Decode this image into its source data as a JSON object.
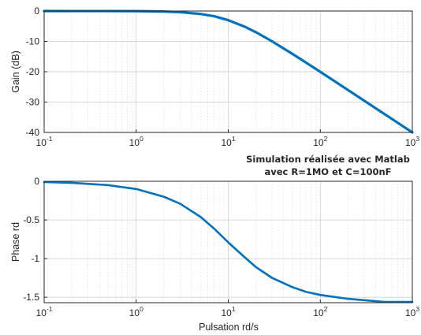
{
  "chart_data": [
    {
      "type": "line",
      "xscale": "log",
      "xlim": [
        0.1,
        1000
      ],
      "ylim": [
        -40,
        0
      ],
      "xticks": [
        "10^-1",
        "10^0",
        "10^1",
        "10^2",
        "10^3"
      ],
      "yticks": [
        0,
        -10,
        -20,
        -30,
        -40
      ],
      "xlabel": "",
      "ylabel": "Gain (dB)",
      "grid": true,
      "line_color": "#0072bd",
      "series": [
        {
          "x": [
            0.1,
            0.2,
            0.5,
            1,
            2,
            3,
            5,
            7,
            10,
            15,
            20,
            30,
            50,
            70,
            100,
            200,
            500,
            1000
          ],
          "y": [
            0,
            -0.02,
            -0.01,
            -0.04,
            -0.17,
            -0.37,
            -0.97,
            -1.7,
            -3.01,
            -5.12,
            -6.99,
            -10.0,
            -14.15,
            -16.99,
            -20.04,
            -26.02,
            -33.98,
            -40.0
          ]
        }
      ]
    },
    {
      "type": "line",
      "xscale": "log",
      "xlim": [
        0.1,
        1000
      ],
      "ylim": [
        -1.57,
        0
      ],
      "xticks": [
        "10^-1",
        "10^0",
        "10^1",
        "10^2",
        "10^3"
      ],
      "yticks": [
        "0",
        "-0.5",
        "-1",
        "-1.5"
      ],
      "xlabel": "Pulsation rd/s",
      "ylabel": "Phase rd",
      "grid": true,
      "line_color": "#0072bd",
      "series": [
        {
          "x": [
            0.1,
            0.2,
            0.5,
            1,
            2,
            3,
            5,
            7,
            10,
            15,
            20,
            30,
            50,
            70,
            100,
            200,
            500,
            1000
          ],
          "y": [
            -0.01,
            -0.02,
            -0.05,
            -0.1,
            -0.2,
            -0.29,
            -0.46,
            -0.61,
            -0.79,
            -0.98,
            -1.11,
            -1.25,
            -1.37,
            -1.43,
            -1.47,
            -1.52,
            -1.56,
            -1.56
          ]
        }
      ]
    }
  ],
  "annotation": {
    "line1": "Simulation réalisée avec Matlab",
    "line2": "avec R=1MO et C=100nF"
  }
}
